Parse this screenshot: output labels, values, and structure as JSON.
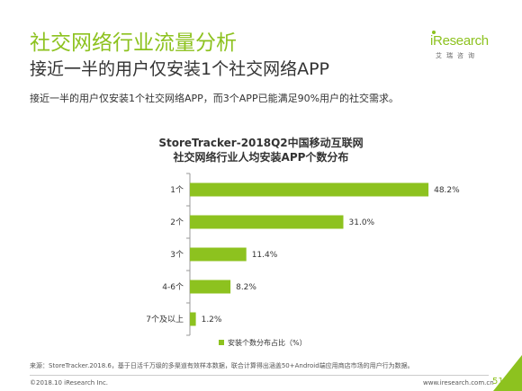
{
  "header": {
    "title": "社交网络行业流量分析",
    "subtitle": "接近一半的用户仅安装1个社交网络APP",
    "summary": "接近一半的用户仅安装1个社交网络APP，而3个APP已能满足90%用户的社交需求。"
  },
  "logo": {
    "name": "iResearch",
    "tagline": "艾瑞咨询"
  },
  "chart_data": {
    "type": "bar",
    "orientation": "horizontal",
    "title": [
      "StoreTracker-2018Q2中国移动互联网",
      "社交网络行业人均安装APP个数分布"
    ],
    "categories": [
      "1个",
      "2个",
      "3个",
      "4-6个",
      "7个及以上"
    ],
    "series": [
      {
        "name": "安装个数分布占比（%）",
        "values": [
          48.2,
          31.0,
          11.4,
          8.2,
          1.2
        ],
        "labels": [
          "48.2%",
          "31.0%",
          "11.4%",
          "8.2%",
          "1.2%"
        ]
      }
    ],
    "xlim": [
      0,
      60
    ],
    "grid": false,
    "legend": "bottom",
    "color": "#8dc21f"
  },
  "footer": {
    "source": "来源：StoreTracker.2018.6，基于日活千万级的多渠道有效样本数据，联合计算得出涵盖50+Android端应用商店市场的用户行为数据。",
    "copyright": "©2018.10 iResearch Inc.",
    "website": "www.iresearch.com.cn",
    "page": "51"
  }
}
